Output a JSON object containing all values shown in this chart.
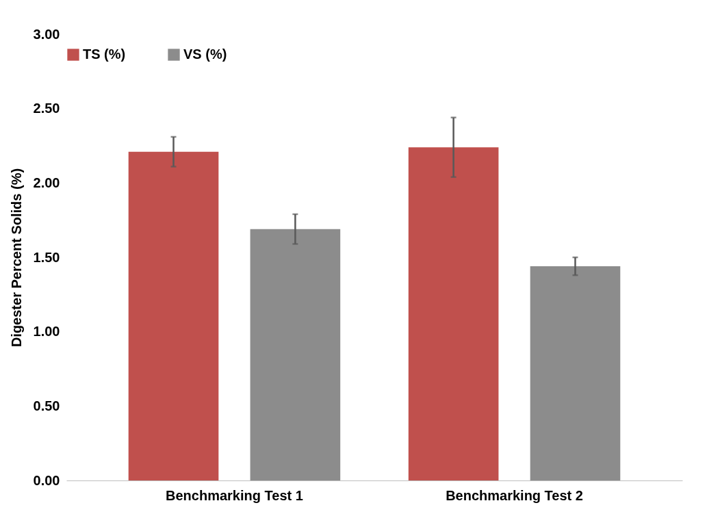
{
  "chart_data": {
    "type": "bar",
    "ylabel": "Digester Percent Solids (%)",
    "categories": [
      "Benchmarking Test 1",
      "Benchmarking Test 2"
    ],
    "series": [
      {
        "name": "TS (%)",
        "color": "#c0504d",
        "values": [
          2.21,
          2.24
        ],
        "errors": [
          0.1,
          0.2
        ]
      },
      {
        "name": "VS (%)",
        "color": "#8c8c8c",
        "values": [
          1.69,
          1.44
        ],
        "errors": [
          0.1,
          0.06
        ]
      }
    ],
    "ylim": [
      0,
      3
    ],
    "yticks": [
      {
        "value": 0,
        "label": "0.00"
      },
      {
        "value": 0.5,
        "label": "0.50"
      },
      {
        "value": 1,
        "label": "1.00"
      },
      {
        "value": 1.5,
        "label": "1.50"
      },
      {
        "value": 2,
        "label": "2.00"
      },
      {
        "value": 2.5,
        "label": "2.50"
      },
      {
        "value": 3,
        "label": "3.00"
      }
    ],
    "grid": false,
    "legend": "top"
  }
}
